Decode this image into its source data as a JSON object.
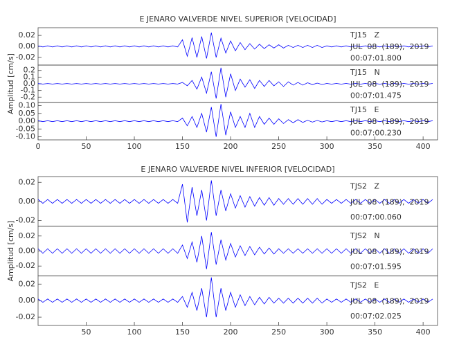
{
  "chart_data": [
    {
      "type": "line",
      "title": "E JENARO VALVERDE NIVEL SUPERIOR [VELOCIDAD]",
      "ylabel": "Amplitud [cm/s]",
      "xlim": [
        0,
        415
      ],
      "xticks": [
        0,
        50,
        100,
        150,
        200,
        250,
        300,
        350,
        400
      ],
      "x": [
        0,
        5,
        10,
        15,
        20,
        25,
        30,
        35,
        40,
        45,
        50,
        55,
        60,
        65,
        70,
        75,
        80,
        85,
        90,
        95,
        100,
        105,
        110,
        115,
        120,
        125,
        130,
        135,
        140,
        145,
        150,
        155,
        160,
        165,
        170,
        175,
        180,
        185,
        190,
        195,
        200,
        205,
        210,
        215,
        220,
        225,
        230,
        235,
        240,
        245,
        250,
        255,
        260,
        265,
        270,
        275,
        280,
        285,
        290,
        295,
        300,
        305,
        310,
        315,
        320,
        325,
        330,
        335,
        340,
        345,
        350,
        355,
        360,
        365,
        370,
        375,
        380,
        385,
        390,
        395,
        400,
        405,
        410
      ],
      "panels": [
        {
          "station": "TJ15   Z",
          "date": "JUL  08  (189),  2019",
          "time": "00:07:01.800",
          "color": "#0000ff",
          "ylim": [
            -0.034,
            0.034
          ],
          "yticks": [
            0.02,
            {
              "value": 0,
              "label": "0.00"
            },
            -0.02
          ],
          "values": [
            0.001,
            -0.001,
            0.001,
            -0.001,
            0.001,
            -0.001,
            0.001,
            -0.001,
            0.001,
            -0.001,
            0.001,
            -0.001,
            0.001,
            -0.001,
            0.001,
            -0.001,
            0.001,
            -0.001,
            0.001,
            -0.001,
            0.001,
            -0.001,
            0.001,
            -0.001,
            0.001,
            -0.001,
            0.001,
            -0.001,
            0.001,
            -0.001,
            0.012,
            -0.018,
            0.016,
            -0.02,
            0.018,
            -0.022,
            0.025,
            -0.02,
            0.015,
            -0.012,
            0.01,
            -0.008,
            0.007,
            -0.006,
            0.005,
            -0.005,
            0.004,
            -0.004,
            0.003,
            -0.003,
            0.003,
            -0.003,
            0.002,
            -0.002,
            0.002,
            -0.002,
            0.002,
            -0.002,
            0.002,
            -0.002,
            0.001,
            -0.001,
            0.001,
            -0.001,
            0.001,
            -0.001,
            0.001,
            -0.001,
            0.001,
            -0.001,
            0.001,
            -0.001,
            0.001,
            -0.001,
            0.001,
            -0.001,
            0.001,
            -0.001,
            0.001,
            -0.001,
            0.001,
            -0.001,
            0.001
          ]
        },
        {
          "station": "TJ15   N",
          "date": "JUL  08  (189),  2019",
          "time": "00:07:01.475",
          "color": "#0000ff",
          "ylim": [
            -0.28,
            0.28
          ],
          "yticks": [
            0.2,
            0.1,
            {
              "value": 0,
              "label": "0.0"
            },
            -0.1,
            -0.2
          ],
          "values": [
            0.004,
            -0.004,
            0.004,
            -0.004,
            0.004,
            -0.004,
            0.004,
            -0.004,
            0.004,
            -0.004,
            0.004,
            -0.004,
            0.004,
            -0.004,
            0.004,
            -0.004,
            0.004,
            -0.004,
            0.004,
            -0.004,
            0.004,
            -0.004,
            0.004,
            -0.004,
            0.004,
            -0.004,
            0.004,
            -0.004,
            0.004,
            -0.004,
            0.02,
            -0.03,
            0.05,
            -0.08,
            0.1,
            -0.14,
            0.18,
            -0.22,
            0.24,
            -0.2,
            0.15,
            -0.1,
            0.07,
            -0.05,
            0.06,
            -0.07,
            0.05,
            -0.04,
            0.05,
            -0.03,
            0.03,
            -0.04,
            0.03,
            -0.02,
            0.02,
            -0.02,
            0.015,
            -0.012,
            0.01,
            -0.01,
            0.005,
            -0.005,
            0.005,
            -0.005,
            0.005,
            -0.005,
            0.005,
            -0.005,
            0.005,
            -0.005,
            0.005,
            -0.005,
            0.005,
            -0.005,
            0.005,
            -0.005,
            0.005,
            -0.005,
            0.005,
            -0.005,
            0.005,
            -0.005,
            0.005
          ]
        },
        {
          "station": "TJ15   E",
          "date": "JUL  08  (189),  2019",
          "time": "00:07:00.230",
          "color": "#0000ff",
          "ylim": [
            -0.12,
            0.12
          ],
          "yticks": [
            {
              "value": 0.1,
              "label": "0.10"
            },
            0.05,
            {
              "value": 0,
              "label": "0.00"
            },
            -0.05,
            {
              "value": -0.1,
              "label": "-0.10"
            }
          ],
          "values": [
            0.003,
            -0.003,
            0.003,
            -0.003,
            0.003,
            -0.003,
            0.003,
            -0.003,
            0.003,
            -0.003,
            0.003,
            -0.003,
            0.003,
            -0.003,
            0.003,
            -0.003,
            0.003,
            -0.003,
            0.003,
            -0.003,
            0.003,
            -0.003,
            0.003,
            -0.003,
            0.003,
            -0.003,
            0.003,
            -0.003,
            0.003,
            -0.003,
            0.02,
            -0.03,
            0.03,
            -0.04,
            0.05,
            -0.07,
            0.09,
            -0.1,
            0.11,
            -0.09,
            0.06,
            -0.04,
            0.03,
            -0.04,
            0.05,
            -0.04,
            0.03,
            -0.02,
            0.02,
            -0.02,
            0.015,
            -0.015,
            0.01,
            -0.01,
            0.01,
            -0.008,
            0.006,
            -0.006,
            0.005,
            -0.005,
            0.003,
            -0.003,
            0.003,
            -0.003,
            0.003,
            -0.003,
            0.003,
            -0.003,
            0.003,
            -0.003,
            0.003,
            -0.003,
            0.003,
            -0.003,
            0.003,
            -0.003,
            0.003,
            -0.003,
            0.003,
            -0.003,
            0.003,
            -0.003,
            0.003
          ]
        }
      ]
    },
    {
      "type": "line",
      "title": "E JENARO VALVERDE NIVEL INFERIOR [VELOCIDAD]",
      "ylabel": "Amplitud [cm/s]",
      "xlim": [
        0,
        415
      ],
      "xticks": [
        50,
        100,
        150,
        200,
        250,
        300,
        350,
        400
      ],
      "x": [
        0,
        5,
        10,
        15,
        20,
        25,
        30,
        35,
        40,
        45,
        50,
        55,
        60,
        65,
        70,
        75,
        80,
        85,
        90,
        95,
        100,
        105,
        110,
        115,
        120,
        125,
        130,
        135,
        140,
        145,
        150,
        155,
        160,
        165,
        170,
        175,
        180,
        185,
        190,
        195,
        200,
        205,
        210,
        215,
        220,
        225,
        230,
        235,
        240,
        245,
        250,
        255,
        260,
        265,
        270,
        275,
        280,
        285,
        290,
        295,
        300,
        305,
        310,
        315,
        320,
        325,
        330,
        335,
        340,
        345,
        350,
        355,
        360,
        365,
        370,
        375,
        380,
        385,
        390,
        395,
        400,
        405,
        410
      ],
      "panels": [
        {
          "station": "TJS2   Z",
          "date": "JUL  08  (189),  2019",
          "time": "00:07:00.060",
          "color": "#0000ff",
          "ylim": [
            -0.026,
            0.026
          ],
          "yticks": [
            0.02,
            {
              "value": 0,
              "label": "0.00"
            },
            -0.02
          ],
          "values": [
            0.002,
            -0.002,
            0.002,
            -0.002,
            0.002,
            -0.002,
            0.002,
            -0.002,
            0.002,
            -0.002,
            0.002,
            -0.002,
            0.002,
            -0.002,
            0.002,
            -0.002,
            0.002,
            -0.002,
            0.002,
            -0.002,
            0.002,
            -0.002,
            0.002,
            -0.002,
            0.002,
            -0.002,
            0.002,
            -0.002,
            0.002,
            -0.002,
            0.018,
            -0.022,
            0.015,
            -0.015,
            0.012,
            -0.02,
            0.022,
            -0.015,
            0.012,
            -0.01,
            0.008,
            -0.007,
            0.006,
            -0.006,
            0.005,
            -0.005,
            0.004,
            -0.004,
            0.004,
            -0.004,
            0.003,
            -0.003,
            0.003,
            -0.003,
            0.003,
            -0.003,
            0.003,
            -0.003,
            0.003,
            -0.003,
            0.002,
            -0.002,
            0.002,
            -0.002,
            0.002,
            -0.002,
            0.002,
            -0.002,
            0.002,
            -0.002,
            0.002,
            -0.002,
            0.002,
            -0.002,
            0.002,
            -0.002,
            0.002,
            -0.002,
            0.002,
            -0.002,
            0.002,
            -0.002,
            0.002
          ]
        },
        {
          "station": "TJS2   N",
          "date": "JUL  08  (189),  2019",
          "time": "00:07:01.595",
          "color": "#0000ff",
          "ylim": [
            -0.033,
            0.033
          ],
          "yticks": [
            0.02,
            {
              "value": 0,
              "label": "0.00"
            },
            -0.02
          ],
          "values": [
            0.003,
            -0.003,
            0.003,
            -0.003,
            0.003,
            -0.003,
            0.003,
            -0.003,
            0.003,
            -0.003,
            0.003,
            -0.003,
            0.003,
            -0.003,
            0.003,
            -0.003,
            0.003,
            -0.003,
            0.003,
            -0.003,
            0.003,
            -0.003,
            0.003,
            -0.003,
            0.003,
            -0.003,
            0.003,
            -0.003,
            0.003,
            -0.003,
            0.008,
            -0.01,
            0.012,
            -0.015,
            0.02,
            -0.024,
            0.025,
            -0.018,
            0.015,
            -0.012,
            0.01,
            -0.008,
            0.007,
            -0.006,
            0.006,
            -0.005,
            0.005,
            -0.004,
            0.004,
            -0.004,
            0.003,
            -0.003,
            0.003,
            -0.003,
            0.003,
            -0.003,
            0.003,
            -0.003,
            0.003,
            -0.003,
            0.003,
            -0.003,
            0.003,
            -0.003,
            0.003,
            -0.003,
            0.003,
            -0.003,
            0.003,
            -0.003,
            0.003,
            -0.003,
            0.003,
            -0.003,
            0.003,
            -0.003,
            0.003,
            -0.003,
            0.003,
            -0.003,
            0.003,
            -0.003,
            0.003
          ]
        },
        {
          "station": "TJS2   E",
          "date": "JUL  08  (189),  2019",
          "time": "00:07:02.025",
          "color": "#0000ff",
          "ylim": [
            -0.03,
            0.03
          ],
          "yticks": [
            0.02,
            {
              "value": 0,
              "label": "0.00"
            },
            -0.02
          ],
          "values": [
            0.002,
            -0.002,
            0.002,
            -0.002,
            0.002,
            -0.002,
            0.002,
            -0.002,
            0.002,
            -0.002,
            0.002,
            -0.002,
            0.002,
            -0.002,
            0.002,
            -0.002,
            0.002,
            -0.002,
            0.002,
            -0.002,
            0.002,
            -0.002,
            0.002,
            -0.002,
            0.002,
            -0.002,
            0.002,
            -0.002,
            0.002,
            -0.002,
            0.005,
            -0.008,
            0.01,
            -0.012,
            0.015,
            -0.02,
            0.028,
            -0.02,
            0.015,
            -0.012,
            0.01,
            -0.008,
            0.007,
            -0.006,
            0.005,
            -0.005,
            0.004,
            -0.004,
            0.004,
            -0.003,
            0.003,
            -0.003,
            0.003,
            -0.003,
            0.003,
            -0.003,
            0.003,
            -0.003,
            0.003,
            -0.003,
            0.002,
            -0.002,
            0.002,
            -0.002,
            0.002,
            -0.002,
            0.002,
            -0.002,
            0.002,
            -0.002,
            0.002,
            -0.002,
            0.002,
            -0.002,
            0.002,
            -0.002,
            0.002,
            -0.002,
            0.002,
            -0.002,
            0.002,
            -0.002,
            0.002
          ]
        }
      ]
    }
  ]
}
